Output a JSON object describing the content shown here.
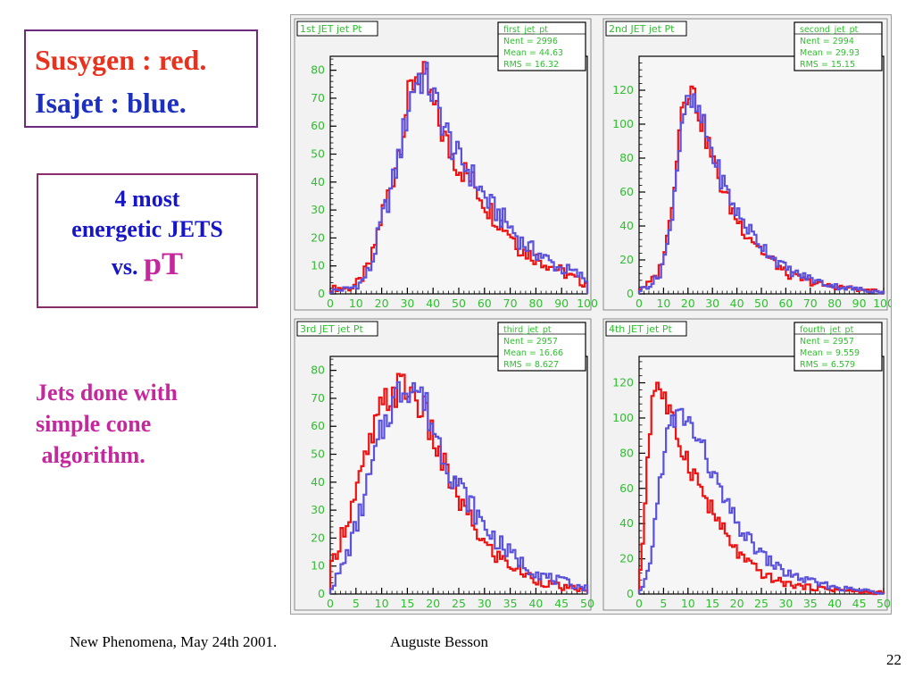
{
  "legend": {
    "line1": "Susygen : red.",
    "line1_color": "#e8321e",
    "line2": "Isajet : blue.",
    "line2_color": "#1c2fbf"
  },
  "topic": {
    "line1": "4 most",
    "line2": "energetic JETS",
    "line3_prefix": "vs. ",
    "line3_pt": "pT"
  },
  "note": "Jets done with\nsimple cone\n algorithm.",
  "footer": {
    "left": "New Phenomena, May 24th 2001.",
    "author": "Auguste Besson",
    "page": "22"
  },
  "colors": {
    "susygen": "#ee1111",
    "isajet": "#5a52dc",
    "stats_text": "#2ec02e",
    "pad_background": "#f2f2f2",
    "tick_labels": "#2ec02e"
  },
  "chart_data": [
    {
      "type": "histogram",
      "title": "1st JET jet Pt",
      "stats": {
        "name": "first_jet_pt",
        "entries": "Nent = 2996",
        "mean": "Mean = 44.63",
        "rms": "RMS = 16.32"
      },
      "xlim": [
        0,
        100
      ],
      "ylim": [
        0,
        85
      ],
      "xticks": [
        0,
        10,
        20,
        30,
        40,
        50,
        60,
        70,
        80,
        90,
        100
      ],
      "yticks": [
        0,
        10,
        20,
        30,
        40,
        50,
        60,
        70,
        80
      ],
      "series": [
        {
          "name": "Susygen",
          "anchors_x": [
            0,
            8,
            12,
            16,
            20,
            24,
            28,
            31,
            34,
            38,
            42,
            46,
            50,
            54,
            58,
            62,
            66,
            70,
            74,
            78,
            82,
            86,
            90,
            94,
            98,
            100
          ],
          "anchors_y": [
            2,
            2,
            5,
            12,
            28,
            40,
            58,
            72,
            80,
            74,
            62,
            52,
            46,
            42,
            36,
            30,
            26,
            22,
            16,
            14,
            12,
            10,
            8,
            6,
            4,
            4
          ]
        },
        {
          "name": "Isajet",
          "anchors_x": [
            0,
            8,
            12,
            16,
            20,
            24,
            28,
            31,
            34,
            38,
            42,
            46,
            50,
            54,
            58,
            62,
            66,
            70,
            74,
            78,
            82,
            86,
            90,
            94,
            98,
            100
          ],
          "anchors_y": [
            1,
            2,
            4,
            10,
            26,
            38,
            55,
            70,
            78,
            76,
            66,
            56,
            48,
            44,
            38,
            32,
            28,
            24,
            19,
            16,
            14,
            11,
            9,
            8,
            6,
            5
          ]
        }
      ]
    },
    {
      "type": "histogram",
      "title": "2nd JET jet Pt",
      "stats": {
        "name": "second_jet_pt",
        "entries": "Nent = 2994",
        "mean": "Mean = 29.93",
        "rms": "RMS = 15.15"
      },
      "xlim": [
        0,
        100
      ],
      "ylim": [
        0,
        140
      ],
      "xticks": [
        0,
        10,
        20,
        30,
        40,
        50,
        60,
        70,
        80,
        90,
        100
      ],
      "yticks": [
        0,
        20,
        40,
        60,
        80,
        100,
        120
      ],
      "series": [
        {
          "name": "Susygen",
          "anchors_x": [
            0,
            4,
            8,
            12,
            15,
            18,
            21,
            24,
            28,
            32,
            36,
            40,
            44,
            48,
            52,
            56,
            60,
            64,
            70,
            76,
            82,
            88,
            94,
            100
          ],
          "anchors_y": [
            3,
            6,
            12,
            35,
            75,
            118,
            122,
            110,
            90,
            70,
            56,
            44,
            36,
            30,
            22,
            18,
            12,
            10,
            7,
            5,
            4,
            3,
            2,
            1
          ]
        },
        {
          "name": "Isajet",
          "anchors_x": [
            0,
            4,
            8,
            12,
            15,
            18,
            21,
            24,
            28,
            32,
            36,
            40,
            44,
            48,
            52,
            56,
            60,
            64,
            70,
            76,
            82,
            88,
            94,
            100
          ],
          "anchors_y": [
            2,
            5,
            10,
            30,
            68,
            108,
            112,
            108,
            92,
            74,
            60,
            48,
            40,
            32,
            26,
            20,
            15,
            12,
            9,
            6,
            4,
            3,
            2,
            1
          ]
        }
      ]
    },
    {
      "type": "histogram",
      "title": "3rd JET jet Pt",
      "stats": {
        "name": "third_jet_pt",
        "entries": "Nent = 2957",
        "mean": "Mean = 16.66",
        "rms": "RMS = 8.627"
      },
      "xlim": [
        0,
        50
      ],
      "ylim": [
        0,
        85
      ],
      "xticks": [
        0,
        5,
        10,
        15,
        20,
        25,
        30,
        35,
        40,
        45,
        50
      ],
      "yticks": [
        0,
        10,
        20,
        30,
        40,
        50,
        60,
        70,
        80
      ],
      "series": [
        {
          "name": "Susygen",
          "anchors_x": [
            0,
            2,
            4,
            6,
            8,
            10,
            12,
            14,
            16,
            18,
            20,
            22,
            24,
            26,
            28,
            30,
            32,
            34,
            36,
            38,
            40,
            42,
            44,
            46,
            48,
            50
          ],
          "anchors_y": [
            8,
            20,
            30,
            42,
            55,
            66,
            72,
            74,
            72,
            66,
            56,
            46,
            38,
            30,
            24,
            18,
            14,
            12,
            9,
            7,
            5,
            4,
            3,
            2,
            2,
            1
          ]
        },
        {
          "name": "Isajet",
          "anchors_x": [
            0,
            2,
            4,
            6,
            8,
            10,
            12,
            14,
            16,
            18,
            20,
            22,
            24,
            26,
            28,
            30,
            32,
            34,
            36,
            38,
            40,
            42,
            44,
            46,
            48,
            50
          ],
          "anchors_y": [
            2,
            8,
            18,
            30,
            44,
            58,
            68,
            74,
            76,
            70,
            60,
            50,
            42,
            36,
            30,
            24,
            20,
            16,
            13,
            10,
            8,
            6,
            5,
            4,
            3,
            2
          ]
        }
      ]
    },
    {
      "type": "histogram",
      "title": "4th JET jet Pt",
      "stats": {
        "name": "fourth_jet_pt",
        "entries": "Nent = 2957",
        "mean": "Mean = 9.559",
        "rms": "RMS = 6.579"
      },
      "xlim": [
        0,
        50
      ],
      "ylim": [
        0,
        135
      ],
      "xticks": [
        0,
        5,
        10,
        15,
        20,
        25,
        30,
        35,
        40,
        45,
        50
      ],
      "yticks": [
        0,
        20,
        40,
        60,
        80,
        100,
        120
      ],
      "series": [
        {
          "name": "Susygen",
          "anchors_x": [
            0,
            1,
            2,
            3,
            4,
            5,
            6,
            7,
            8,
            9,
            10,
            12,
            14,
            16,
            18,
            20,
            22,
            24,
            26,
            28,
            30,
            34,
            38,
            42,
            46,
            50
          ],
          "anchors_y": [
            2,
            40,
            90,
            118,
            120,
            112,
            104,
            96,
            88,
            82,
            76,
            64,
            52,
            42,
            32,
            24,
            18,
            14,
            10,
            8,
            6,
            4,
            3,
            2,
            1,
            1
          ]
        },
        {
          "name": "Isajet",
          "anchors_x": [
            0,
            1,
            2,
            3,
            4,
            5,
            6,
            7,
            8,
            9,
            10,
            12,
            14,
            16,
            18,
            20,
            22,
            24,
            26,
            28,
            30,
            34,
            38,
            42,
            46,
            50
          ],
          "anchors_y": [
            1,
            4,
            14,
            34,
            58,
            80,
            92,
            98,
            100,
            102,
            98,
            88,
            76,
            62,
            50,
            40,
            32,
            26,
            20,
            16,
            12,
            8,
            5,
            3,
            2,
            1
          ]
        }
      ]
    }
  ]
}
